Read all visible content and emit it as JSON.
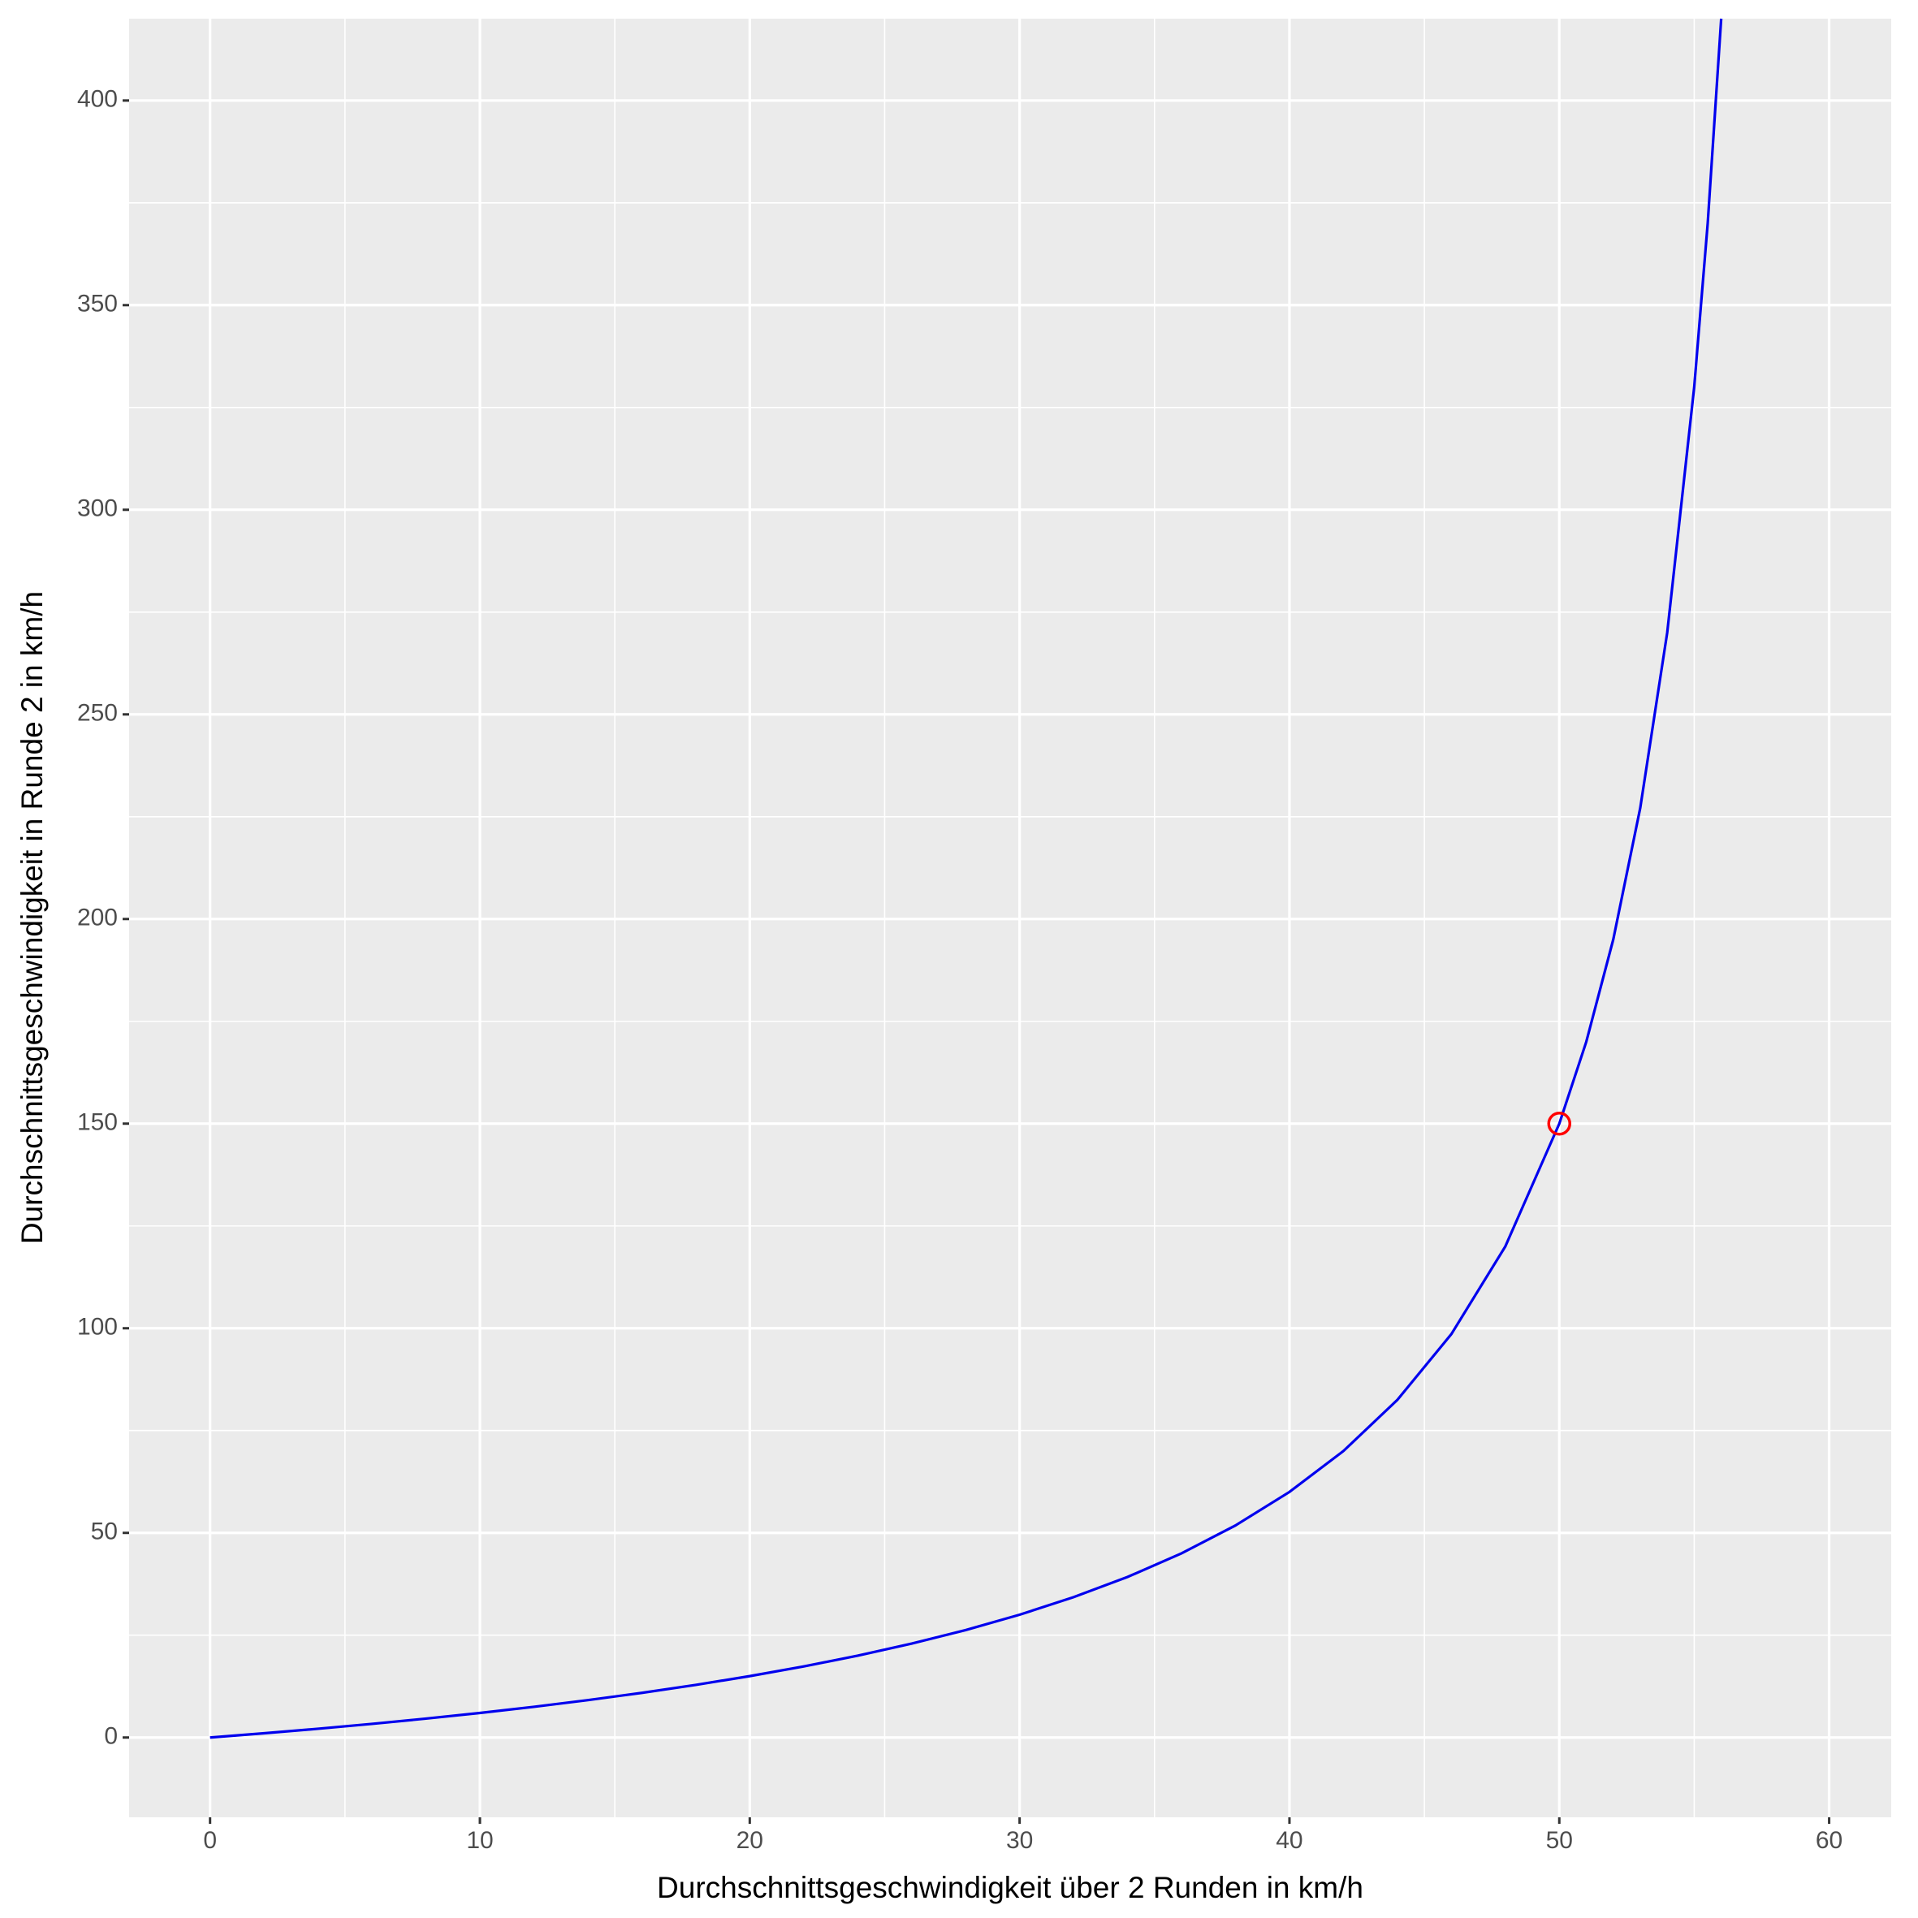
{
  "chart_data": {
    "type": "line",
    "x_label": "Durchschnittsgeschwindigkeit über 2 Runden in km/h",
    "y_label": "Durchschnittsgeschwindigkeit in Runde 2 in km/h",
    "x": [
      0,
      2,
      4,
      6,
      8,
      10,
      12,
      14,
      16,
      18,
      20,
      22,
      24,
      26,
      28,
      30,
      32,
      34,
      36,
      38,
      40,
      42,
      44,
      46,
      48,
      50,
      51,
      52,
      53,
      54,
      55,
      55.5,
      56
    ],
    "series": [
      {
        "color": "#0000ee",
        "values": [
          0,
          1.03,
          2.14,
          3.33,
          4.62,
          6,
          7.5,
          9.13,
          10.91,
          12.86,
          15,
          17.37,
          20,
          22.94,
          26.25,
          30,
          34.29,
          39.23,
          45,
          51.82,
          60,
          70,
          82.5,
          98.57,
          120,
          150,
          170,
          195,
          227.14,
          270,
          330,
          370,
          420
        ]
      }
    ],
    "points": {
      "x": [
        50
      ],
      "y": [
        150
      ],
      "color": "#ff0000"
    },
    "xlim": [
      -3,
      62.3
    ],
    "ylim": [
      -19.5,
      420
    ],
    "xticks": [
      0,
      10,
      20,
      30,
      40,
      50,
      60
    ],
    "yticks": [
      0,
      50,
      100,
      150,
      200,
      250,
      300,
      350,
      400
    ],
    "x_minor_ticks": [
      5,
      15,
      25,
      35,
      45,
      55
    ],
    "y_minor_ticks": [
      25,
      75,
      125,
      175,
      225,
      275,
      325,
      375
    ],
    "grid": true
  }
}
